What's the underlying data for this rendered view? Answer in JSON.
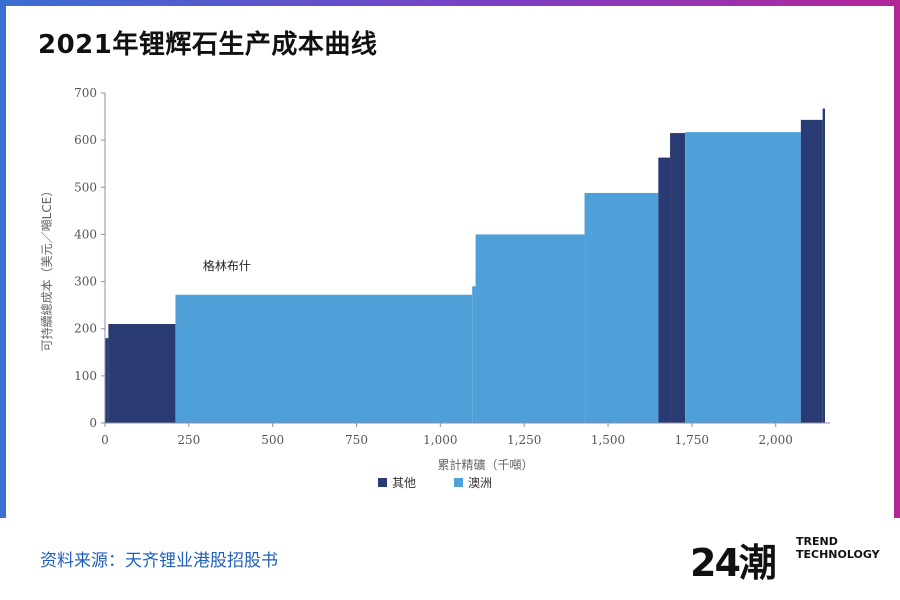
{
  "header": {
    "title": "2021年锂辉石生产成本曲线"
  },
  "footer": {
    "source": "资料来源：天齐锂业港股招股书",
    "logo_mark": "24潮",
    "logo_line1": "TREND",
    "logo_line2": "TECHNOLOGY"
  },
  "colors": {
    "other": "#2a3a72",
    "australia": "#4f9fd8"
  },
  "chart_data": {
    "type": "bar",
    "subtype": "cost-curve-step",
    "xlabel": "累計精礦（千噸）",
    "ylabel": "可持續總成本（美元／噸LCE）",
    "xlim": [
      0,
      2150
    ],
    "ylim": [
      0,
      700
    ],
    "xticks": [
      0,
      250,
      500,
      750,
      1000,
      1250,
      1500,
      1750,
      2000
    ],
    "xtick_labels": [
      "0",
      "250",
      "500",
      "750",
      "1,000",
      "1,250",
      "1,500",
      "1,750",
      "2,000"
    ],
    "yticks": [
      0,
      100,
      200,
      300,
      400,
      500,
      600,
      700
    ],
    "ytick_labels": [
      "0",
      "100",
      "200",
      "300",
      "400",
      "500",
      "600",
      "700"
    ],
    "legend": [
      {
        "name": "其他",
        "color": "#2a3a72"
      },
      {
        "name": "澳洲",
        "color": "#4f9fd8"
      }
    ],
    "legend_position": "bottom",
    "grid": false,
    "annotations": [
      {
        "text": "格林布什",
        "x": 620,
        "y": 320
      }
    ],
    "segments": [
      {
        "x0": 0,
        "x1": 10,
        "cost": 180,
        "series": "其他"
      },
      {
        "x0": 10,
        "x1": 210,
        "cost": 210,
        "series": "其他"
      },
      {
        "x0": 210,
        "x1": 1095,
        "cost": 272,
        "series": "澳洲"
      },
      {
        "x0": 1095,
        "x1": 1105,
        "cost": 290,
        "series": "澳洲"
      },
      {
        "x0": 1105,
        "x1": 1430,
        "cost": 400,
        "series": "澳洲"
      },
      {
        "x0": 1430,
        "x1": 1650,
        "cost": 488,
        "series": "澳洲"
      },
      {
        "x0": 1650,
        "x1": 1685,
        "cost": 563,
        "series": "其他"
      },
      {
        "x0": 1685,
        "x1": 1730,
        "cost": 615,
        "series": "其他"
      },
      {
        "x0": 1730,
        "x1": 2075,
        "cost": 617,
        "series": "澳洲"
      },
      {
        "x0": 2075,
        "x1": 2140,
        "cost": 643,
        "series": "其他"
      },
      {
        "x0": 2140,
        "x1": 2147,
        "cost": 667,
        "series": "其他"
      }
    ]
  }
}
